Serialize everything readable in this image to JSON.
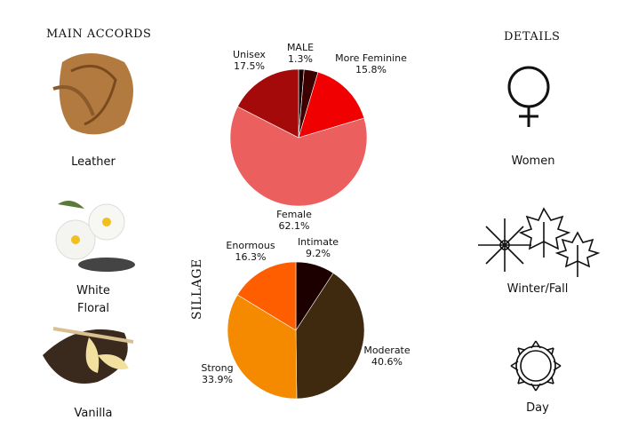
{
  "headers": {
    "main_accords": "MAIN ACCORDS",
    "details": "DETAILS",
    "sillage": "SILLAGE"
  },
  "accords": [
    {
      "label": "Leather",
      "icon": "leather-icon"
    },
    {
      "label": "White Floral",
      "icon": "white-flower-icon"
    },
    {
      "label": "Vanilla",
      "icon": "vanilla-icon"
    }
  ],
  "details": [
    {
      "label": "Women",
      "icon": "female-symbol-icon"
    },
    {
      "label": "Winter/Fall",
      "icon": "snowflake-leaves-icon"
    },
    {
      "label": "Day",
      "icon": "sun-icon"
    }
  ],
  "chart_data": [
    {
      "type": "pie",
      "title": "",
      "slices": [
        {
          "label": "MALE",
          "value": 1.3,
          "display": "1.3%",
          "color": "#1a0000"
        },
        {
          "label": "",
          "value": 3.3,
          "display": "",
          "color": "#3d0000"
        },
        {
          "label": "More Feminine",
          "value": 15.8,
          "display": "15.8%",
          "color": "#f00000"
        },
        {
          "label": "Female",
          "value": 62.1,
          "display": "62.1%",
          "color": "#eb5f5f"
        },
        {
          "label": "Unisex",
          "value": 17.5,
          "display": "17.5%",
          "color": "#a50a0a"
        }
      ]
    },
    {
      "type": "pie",
      "title": "SILLAGE",
      "slices": [
        {
          "label": "Intimate",
          "value": 9.2,
          "display": "9.2%",
          "color": "#1c0000"
        },
        {
          "label": "Moderate",
          "value": 40.6,
          "display": "40.6%",
          "color": "#3f2a10"
        },
        {
          "label": "Strong",
          "value": 33.9,
          "display": "33.9%",
          "color": "#f58a00"
        },
        {
          "label": "Enormous",
          "value": 16.3,
          "display": "16.3%",
          "color": "#ff5e00"
        }
      ]
    }
  ]
}
